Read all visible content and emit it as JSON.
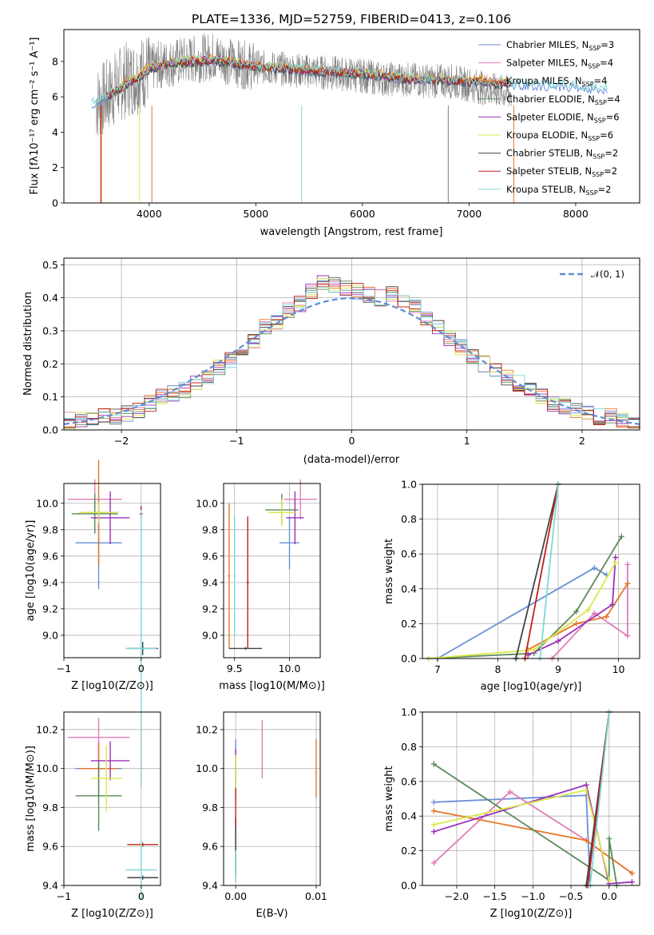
{
  "chart_data": [
    {
      "type": "line",
      "title": "PLATE=1336, MJD=52759, FIBERID=0413, z=0.106",
      "xlabel": "wavelength [Angstrom, rest frame]",
      "ylabel": "Flux [fλ10⁻¹⁷ erg cm⁻² s⁻¹ A⁻¹]",
      "xlim": [
        3200,
        8600
      ],
      "ylim": [
        0,
        9.8
      ],
      "xticks": [
        "4000",
        "5000",
        "6000",
        "7000",
        "8000"
      ],
      "yticks": [
        "0",
        "2",
        "4",
        "6",
        "8"
      ],
      "grid": false,
      "legend_position": "top-right",
      "series": [
        {
          "name": "Chabrier MILES, N_SSP=3",
          "color": "#6a8fd8"
        },
        {
          "name": "Salpeter MILES, N_SSP=4",
          "color": "#e07db6"
        },
        {
          "name": "Kroupa MILES, N_SSP=4",
          "color": "#e7762a"
        },
        {
          "name": "Chabrier ELODIE, N_SSP=4",
          "color": "#5a8a5a"
        },
        {
          "name": "Salpeter ELODIE, N_SSP=6",
          "color": "#9b30b8"
        },
        {
          "name": "Kroupa ELODIE, N_SSP=6",
          "color": "#dbe84a"
        },
        {
          "name": "Chabrier STELIB, N_SSP=2",
          "color": "#444444"
        },
        {
          "name": "Salpeter STELIB, N_SSP=2",
          "color": "#c0201a"
        },
        {
          "name": "Kroupa STELIB, N_SSP=2",
          "color": "#7fd8d8"
        }
      ],
      "observed_spectrum": {
        "color": "#808080",
        "x": [
          3500,
          3600,
          3700,
          3800,
          3900,
          4000,
          4100,
          4200,
          4300,
          4400,
          4500,
          4600,
          4700,
          4800,
          4900,
          5000,
          5200,
          5400,
          5600,
          5800,
          6000,
          6200,
          6400,
          6600,
          6800,
          7000,
          7200,
          7400
        ],
        "y": [
          5.6,
          6.0,
          6.6,
          7.0,
          7.2,
          7.6,
          7.8,
          7.9,
          8.0,
          8.1,
          8.2,
          8.3,
          8.1,
          7.9,
          7.8,
          7.7,
          7.6,
          7.5,
          7.4,
          7.3,
          7.2,
          7.0,
          7.0,
          6.9,
          6.9,
          6.7,
          6.4,
          6.2
        ]
      },
      "model_spectrum": {
        "x": [
          3400,
          3500,
          3600,
          3700,
          3800,
          3900,
          4000,
          4200,
          4400,
          4600,
          4800,
          5000,
          5500,
          6000,
          6500,
          7000,
          7500,
          8000,
          8300
        ],
        "y": [
          5.4,
          5.7,
          6.0,
          6.4,
          6.8,
          7.1,
          7.6,
          7.9,
          8.0,
          8.1,
          7.9,
          7.7,
          7.5,
          7.3,
          7.0,
          6.9,
          6.7,
          6.6,
          6.4
        ]
      }
    },
    {
      "type": "line",
      "xlabel": "(data-model)/error",
      "ylabel": "Normed distribution",
      "xlim": [
        -2.5,
        2.5
      ],
      "ylim": [
        0,
        0.52
      ],
      "xticks": [
        "−2",
        "−1",
        "0",
        "1",
        "2"
      ],
      "yticks": [
        "0.0",
        "0.1",
        "0.2",
        "0.3",
        "0.4",
        "0.5"
      ],
      "grid": true,
      "legend_position": "top-right",
      "legend": "𝒩(0, 1)",
      "bin_centers": [
        -2.45,
        -2.35,
        -2.25,
        -2.15,
        -2.05,
        -1.95,
        -1.85,
        -1.75,
        -1.65,
        -1.55,
        -1.45,
        -1.35,
        -1.25,
        -1.15,
        -1.05,
        -0.95,
        -0.85,
        -0.75,
        -0.65,
        -0.55,
        -0.45,
        -0.35,
        -0.25,
        -0.15,
        -0.05,
        0.05,
        0.15,
        0.25,
        0.35,
        0.45,
        0.55,
        0.65,
        0.75,
        0.85,
        0.95,
        1.05,
        1.15,
        1.25,
        1.35,
        1.45,
        1.55,
        1.65,
        1.75,
        1.85,
        1.95,
        2.05,
        2.15,
        2.25,
        2.35,
        2.45
      ],
      "histogram_values": [
        0.03,
        0.03,
        0.03,
        0.04,
        0.04,
        0.05,
        0.06,
        0.08,
        0.1,
        0.11,
        0.12,
        0.14,
        0.16,
        0.19,
        0.21,
        0.24,
        0.27,
        0.31,
        0.33,
        0.36,
        0.38,
        0.42,
        0.45,
        0.44,
        0.43,
        0.42,
        0.41,
        0.4,
        0.41,
        0.39,
        0.37,
        0.34,
        0.31,
        0.28,
        0.25,
        0.22,
        0.2,
        0.18,
        0.16,
        0.14,
        0.12,
        0.1,
        0.08,
        0.07,
        0.06,
        0.05,
        0.04,
        0.04,
        0.03,
        0.02
      ]
    },
    {
      "type": "scatter",
      "xlabel": "Z [log10(Z/Z⊙)]",
      "ylabel": "age  [log10(age/yr)]",
      "xlim": [
        -1.0,
        0.25
      ],
      "ylim": [
        8.83,
        10.15
      ],
      "xticks": [
        "−1",
        "0"
      ],
      "yticks": [
        "9.0",
        "9.2",
        "9.4",
        "9.6",
        "9.8",
        "10.0"
      ],
      "grid": true,
      "points": [
        {
          "x": -0.55,
          "y": 9.7,
          "xerr": 0.3,
          "yerr": 0.35
        },
        {
          "x": -0.6,
          "y": 10.03,
          "xerr": 0.35,
          "yerr": 0.15
        },
        {
          "x": -0.55,
          "y": 9.93,
          "xerr": 0.25,
          "yerr": 0.4
        },
        {
          "x": -0.6,
          "y": 9.92,
          "xerr": 0.3,
          "yerr": 0.15
        },
        {
          "x": -0.4,
          "y": 9.89,
          "xerr": 0.25,
          "yerr": 0.2
        },
        {
          "x": -0.55,
          "y": 9.93,
          "xerr": 0.25,
          "yerr": 0.08
        },
        {
          "x": 0.02,
          "y": 8.9,
          "xerr": 0.2,
          "yerr": 0.05
        },
        {
          "x": 0.0,
          "y": 9.92,
          "xerr": 0.02,
          "yerr": 0.06
        },
        {
          "x": 0.0,
          "y": 8.9,
          "xerr": 0.2,
          "yerr": 1.05
        }
      ]
    },
    {
      "type": "scatter",
      "xlabel": "mass [log10(M/M⊙)]",
      "ylabel": "",
      "xlim": [
        9.4,
        10.28
      ],
      "ylim": [
        8.83,
        10.15
      ],
      "xticks": [
        "9.5",
        "10.0"
      ],
      "yticks": [
        "9.0",
        "9.2",
        "9.4",
        "9.6",
        "9.8",
        "10.0"
      ],
      "grid": true,
      "points": [
        {
          "x": 10.0,
          "y": 9.7,
          "xerr": 0.09,
          "yerr": 0.2
        },
        {
          "x": 10.1,
          "y": 10.03,
          "xerr": 0.15,
          "yerr": 0.15
        },
        {
          "x": 9.45,
          "y": 9.45,
          "xerr": 0.01,
          "yerr": 0.55
        },
        {
          "x": 9.93,
          "y": 9.95,
          "xerr": 0.15,
          "yerr": 0.12
        },
        {
          "x": 10.05,
          "y": 9.89,
          "xerr": 0.08,
          "yerr": 0.2
        },
        {
          "x": 9.93,
          "y": 9.93,
          "xerr": 0.12,
          "yerr": 0.1
        },
        {
          "x": 9.6,
          "y": 8.9,
          "xerr": 0.15,
          "yerr": 0.01
        },
        {
          "x": 9.62,
          "y": 9.4,
          "xerr": 0.01,
          "yerr": 0.5
        },
        {
          "x": 9.5,
          "y": 9.45,
          "xerr": 0.01,
          "yerr": 0.45
        }
      ]
    },
    {
      "type": "line",
      "xlabel": "age  [log10(age/yr)]",
      "ylabel": "mass weight",
      "xlim": [
        6.75,
        10.35
      ],
      "ylim": [
        0,
        1.0
      ],
      "xticks": [
        "7",
        "8",
        "9",
        "10"
      ],
      "yticks": [
        "0.0",
        "0.2",
        "0.4",
        "0.6",
        "0.8",
        "1.0"
      ],
      "grid": true,
      "series": [
        {
          "x": [
            7.0,
            9.6,
            9.8
          ],
          "y": [
            0.0,
            0.52,
            0.48
          ]
        },
        {
          "x": [
            8.9,
            9.6,
            10.15,
            10.15
          ],
          "y": [
            0.0,
            0.26,
            0.13,
            0.54
          ]
        },
        {
          "x": [
            8.5,
            9.3,
            9.8,
            10.15
          ],
          "y": [
            0.05,
            0.2,
            0.24,
            0.43
          ]
        },
        {
          "x": [
            6.85,
            8.6,
            9.3,
            10.05
          ],
          "y": [
            0.0,
            0.03,
            0.27,
            0.7
          ]
        },
        {
          "x": [
            8.5,
            9.0,
            9.9,
            9.95
          ],
          "y": [
            0.02,
            0.1,
            0.31,
            0.58
          ]
        },
        {
          "x": [
            6.85,
            8.6,
            9.5,
            9.95
          ],
          "y": [
            0.0,
            0.05,
            0.28,
            0.55
          ]
        },
        {
          "x": [
            8.3,
            9.0
          ],
          "y": [
            0.0,
            1.0
          ]
        },
        {
          "x": [
            8.45,
            9.0
          ],
          "y": [
            0.0,
            1.0
          ]
        },
        {
          "x": [
            8.7,
            9.0
          ],
          "y": [
            0.0,
            1.0
          ]
        }
      ]
    },
    {
      "type": "scatter",
      "xlabel": "Z [log10(Z/Z⊙)]",
      "ylabel": "mass [log10(M/M⊙)]",
      "xlim": [
        -1.0,
        0.25
      ],
      "ylim": [
        9.4,
        10.29
      ],
      "xticks": [
        "−1",
        "0"
      ],
      "yticks": [
        "9.4",
        "9.6",
        "9.8",
        "10.0",
        "10.2"
      ],
      "grid": true,
      "points": [
        {
          "x": -0.55,
          "y": 10.0,
          "xerr": 0.3,
          "yerr": 0.15
        },
        {
          "x": -0.55,
          "y": 10.16,
          "xerr": 0.4,
          "yerr": 0.1
        },
        {
          "x": -0.55,
          "y": 10.0,
          "xerr": 0.25,
          "yerr": 0.13
        },
        {
          "x": -0.55,
          "y": 9.86,
          "xerr": 0.3,
          "yerr": 0.18
        },
        {
          "x": -0.4,
          "y": 10.04,
          "xerr": 0.25,
          "yerr": 0.1
        },
        {
          "x": -0.45,
          "y": 9.95,
          "xerr": 0.2,
          "yerr": 0.17
        },
        {
          "x": 0.02,
          "y": 9.44,
          "xerr": 0.2,
          "yerr": 0.01
        },
        {
          "x": 0.02,
          "y": 9.61,
          "xerr": 0.2,
          "yerr": 0.01
        },
        {
          "x": 0.0,
          "y": 9.48,
          "xerr": 0.2,
          "yerr": 0.15
        }
      ]
    },
    {
      "type": "scatter",
      "xlabel": "E(B-V)",
      "ylabel": "",
      "xlim": [
        -0.0015,
        0.0105
      ],
      "ylim": [
        9.4,
        10.29
      ],
      "xticks": [
        "0.00",
        "0.01"
      ],
      "yticks": [
        "9.4",
        "9.6",
        "9.8",
        "10.0",
        "10.2"
      ],
      "grid": true,
      "points": [
        {
          "x": 0.0,
          "y": 10.0,
          "yerr": 0.15
        },
        {
          "x": 0.0033,
          "y": 10.1,
          "yerr": 0.15
        },
        {
          "x": 0.01,
          "y": 10.0,
          "yerr": 0.15
        },
        {
          "x": 0.0,
          "y": 9.6,
          "yerr": 0.15
        },
        {
          "x": 0.0,
          "y": 10.0,
          "yerr": 0.1
        },
        {
          "x": 0.0,
          "y": 9.95,
          "yerr": 0.12
        },
        {
          "x": 0.0,
          "y": 9.6,
          "yerr": 0.15
        },
        {
          "x": 0.0,
          "y": 9.8,
          "yerr": 0.1
        },
        {
          "x": 0.0,
          "y": 9.5,
          "yerr": 0.08
        }
      ]
    },
    {
      "type": "line",
      "xlabel": "Z [log10(Z/Z⊙)]",
      "ylabel": "mass weight",
      "xlim": [
        -2.45,
        0.4
      ],
      "ylim": [
        0,
        1.0
      ],
      "xticks": [
        "−2.0",
        "−1.5",
        "−1.0",
        "−0.5",
        "0.0"
      ],
      "yticks": [
        "0.0",
        "0.2",
        "0.4",
        "0.6",
        "0.8",
        "1.0"
      ],
      "grid": true,
      "series": [
        {
          "x": [
            -2.3,
            -0.3,
            -0.25
          ],
          "y": [
            0.48,
            0.52,
            0.0
          ]
        },
        {
          "x": [
            -2.3,
            -1.3,
            -0.3,
            0.3
          ],
          "y": [
            0.13,
            0.54,
            0.26,
            0.07
          ]
        },
        {
          "x": [
            -2.3,
            -0.3,
            0.3
          ],
          "y": [
            0.43,
            0.26,
            0.07
          ]
        },
        {
          "x": [
            -2.3,
            0.0,
            0.0,
            0.1
          ],
          "y": [
            0.7,
            0.03,
            0.27,
            0.0
          ]
        },
        {
          "x": [
            -2.3,
            -0.3,
            0.0,
            0.3
          ],
          "y": [
            0.31,
            0.58,
            0.01,
            0.02
          ]
        },
        {
          "x": [
            -2.3,
            -0.3,
            0.0
          ],
          "y": [
            0.35,
            0.55,
            0.03
          ]
        },
        {
          "x": [
            -0.3,
            0.0
          ],
          "y": [
            0.0,
            1.0
          ]
        },
        {
          "x": [
            -0.28,
            0.0
          ],
          "y": [
            0.0,
            1.0
          ]
        },
        {
          "x": [
            -0.25,
            0.0
          ],
          "y": [
            0.0,
            1.0
          ]
        }
      ]
    }
  ]
}
